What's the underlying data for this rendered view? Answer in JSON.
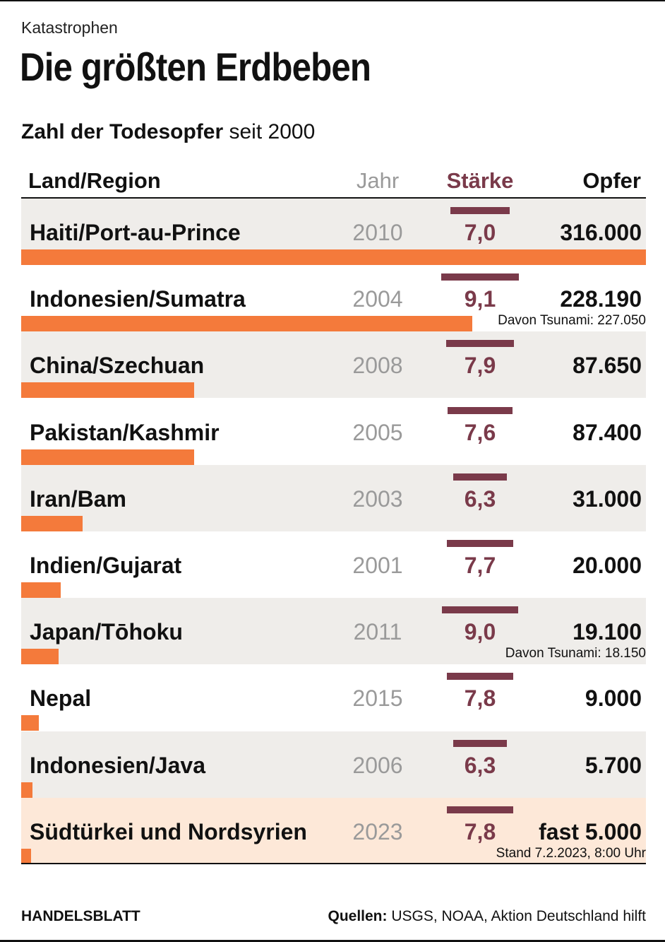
{
  "kicker": "Katastrophen",
  "title": "Die größten Erdbeben",
  "subtitle_bold": "Zahl der Todesopfer",
  "subtitle_rest": " seit 2000",
  "headers": {
    "land": "Land/Region",
    "jahr": "Jahr",
    "staerke": "Stärke",
    "opfer": "Opfer"
  },
  "colors": {
    "magnitude": "#7a3a4a",
    "deaths": "#f47a3b",
    "shade": "#efedea",
    "highlight": "#fde8d8"
  },
  "footer": {
    "brand": "HANDELSBLATT",
    "sources_label": "Quellen:",
    "sources": " USGS, NOAA, Aktion Deutschland hilft"
  },
  "chart_data": {
    "type": "table",
    "title": "Die größten Erdbeben",
    "subtitle": "Zahl der Todesopfer seit 2000",
    "columns": [
      "Land/Region",
      "Jahr",
      "Stärke",
      "Opfer"
    ],
    "max_deaths": 316000,
    "rows": [
      {
        "land": "Haiti/Port-au-Prince",
        "jahr": "2010",
        "staerke": "7,0",
        "magnitude": 7.0,
        "opfer": "316.000",
        "deaths": 316000,
        "note": "",
        "highlight": false
      },
      {
        "land": "Indonesien/Sumatra",
        "jahr": "2004",
        "staerke": "9,1",
        "magnitude": 9.1,
        "opfer": "228.190",
        "deaths": 228190,
        "note": "Davon Tsunami: 227.050",
        "highlight": false
      },
      {
        "land": "China/Szechuan",
        "jahr": "2008",
        "staerke": "7,9",
        "magnitude": 7.9,
        "opfer": "87.650",
        "deaths": 87650,
        "note": "",
        "highlight": false
      },
      {
        "land": "Pakistan/Kashmir",
        "jahr": "2005",
        "staerke": "7,6",
        "magnitude": 7.6,
        "opfer": "87.400",
        "deaths": 87400,
        "note": "",
        "highlight": false
      },
      {
        "land": "Iran/Bam",
        "jahr": "2003",
        "staerke": "6,3",
        "magnitude": 6.3,
        "opfer": "31.000",
        "deaths": 31000,
        "note": "",
        "highlight": false
      },
      {
        "land": "Indien/Gujarat",
        "jahr": "2001",
        "staerke": "7,7",
        "magnitude": 7.7,
        "opfer": "20.000",
        "deaths": 20000,
        "note": "",
        "highlight": false
      },
      {
        "land": "Japan/Tōhoku",
        "jahr": "2011",
        "staerke": "9,0",
        "magnitude": 9.0,
        "opfer": "19.100",
        "deaths": 19100,
        "note": "Davon Tsunami: 18.150",
        "highlight": false
      },
      {
        "land": "Nepal",
        "jahr": "2015",
        "staerke": "7,8",
        "magnitude": 7.8,
        "opfer": "9.000",
        "deaths": 9000,
        "note": "",
        "highlight": false
      },
      {
        "land": "Indonesien/Java",
        "jahr": "2006",
        "staerke": "6,3",
        "magnitude": 6.3,
        "opfer": "5.700",
        "deaths": 5700,
        "note": "",
        "highlight": false
      },
      {
        "land": "Südtürkei und Nordsyrien",
        "jahr": "2023",
        "staerke": "7,8",
        "magnitude": 7.8,
        "opfer": "fast 5.000",
        "deaths": 5000,
        "note": "Stand 7.2.2023, 8:00 Uhr",
        "highlight": true
      }
    ]
  }
}
